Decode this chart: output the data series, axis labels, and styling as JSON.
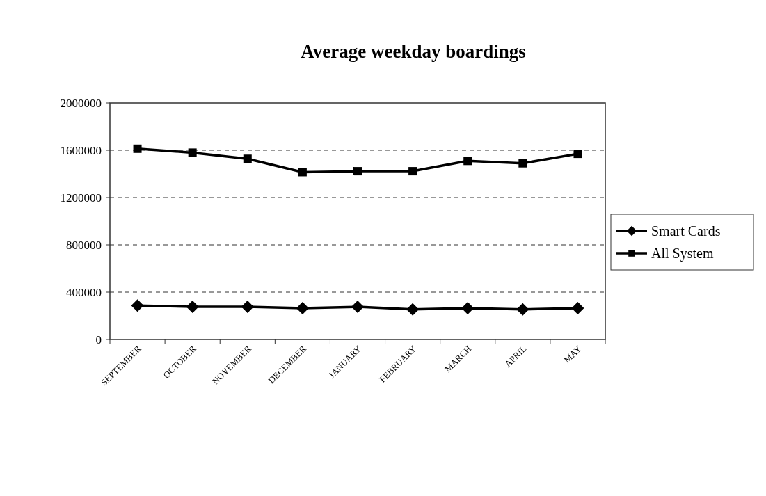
{
  "chart_data": {
    "type": "line",
    "title": "Average weekday boardings",
    "categories": [
      "SEPTEMBER",
      "OCTOBER",
      "NOVEMBER",
      "DECEMBER",
      "JANUARY",
      "FEBRUARY",
      "MARCH",
      "APRIL",
      "MAY"
    ],
    "series": [
      {
        "name": "Smart Cards",
        "color": "#000000",
        "marker": "diamond",
        "values": [
          287000,
          276000,
          276000,
          265000,
          276000,
          254000,
          265000,
          254000,
          265000
        ]
      },
      {
        "name": "All System",
        "color": "#000000",
        "marker": "square",
        "values": [
          1613000,
          1580000,
          1528000,
          1415000,
          1423000,
          1423000,
          1510000,
          1490000,
          1570000
        ]
      }
    ],
    "ylim": [
      0,
      2000000
    ],
    "yticks": [
      0,
      400000,
      800000,
      1200000,
      1600000,
      2000000
    ],
    "grid": "y",
    "legend": "right",
    "line_style": "solid"
  }
}
